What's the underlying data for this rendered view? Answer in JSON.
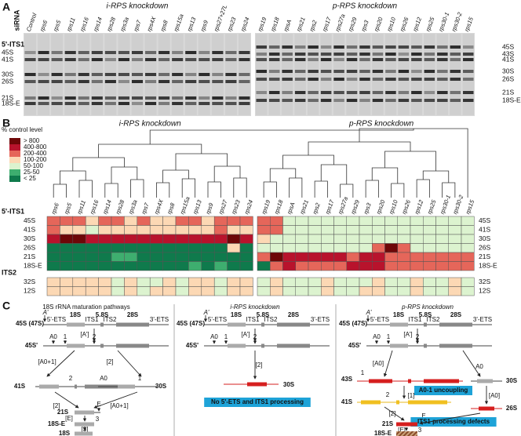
{
  "panel_a": {
    "label": "A",
    "row_header": "siRNA",
    "section": "5'-ITS1",
    "groups": [
      {
        "title": "i-RPS knockdown",
        "lanes": [
          "Control",
          "rps6",
          "rps5",
          "rps11",
          "rps16",
          "rps14",
          "rps28",
          "rps3a",
          "rps7",
          "rps4X",
          "rps8",
          "rps15a",
          "rps13",
          "rps9",
          "rps27+27L",
          "rps23",
          "rps24"
        ]
      },
      {
        "title": "p-RPS knockdown",
        "lanes": [
          "rps19",
          "rps18",
          "rpsA",
          "rps21",
          "rps2",
          "rps17",
          "rps27a",
          "rps29",
          "rps3",
          "rps20",
          "rps10",
          "rps26",
          "rps12",
          "rps25",
          "rps30-1",
          "rps30-2",
          "rps15"
        ]
      }
    ],
    "left_bands": [
      "45S",
      "41S",
      "30S",
      "26S",
      "21S",
      "18S-E"
    ],
    "right_bands": [
      "45S",
      "43S",
      "41S",
      "30S",
      "26S",
      "21S",
      "18S-E"
    ]
  },
  "panel_b": {
    "label": "B",
    "legend_title": "% control level",
    "legend": [
      {
        "label": "> 800",
        "color": "#6e0708"
      },
      {
        "label": "400-800",
        "color": "#b8132c"
      },
      {
        "label": "200-400",
        "color": "#e5665a"
      },
      {
        "label": "100-200",
        "color": "#fcd8b4"
      },
      {
        "label": "50-100",
        "color": "#dcf3cf"
      },
      {
        "label": "25-50",
        "color": "#3eae6f"
      },
      {
        "label": "< 25",
        "color": "#0f7a4c"
      }
    ],
    "groups": [
      {
        "title": "i-RPS knockdown",
        "lanes": [
          "rps6",
          "rps5",
          "rps11",
          "rps16",
          "rps14",
          "rps28",
          "rps3a",
          "rps7",
          "rps4X",
          "rps8",
          "rps15a",
          "rps13",
          "rps9",
          "rps27",
          "rps23",
          "rps24"
        ]
      },
      {
        "title": "p-RPS knockdown",
        "lanes": [
          "rps19",
          "rps18",
          "rpsA",
          "rps21",
          "rps2",
          "rps17",
          "rps27a",
          "rps29",
          "rps3",
          "rps20",
          "rps10",
          "rps26",
          "rps12",
          "rps25",
          "rps30-1",
          "rps30-2",
          "rps15"
        ]
      }
    ],
    "sections": [
      {
        "title": "5'-ITS1",
        "rows": [
          {
            "name": "45S",
            "levels": [
              [
                2,
                2,
                2,
                3,
                2,
                2,
                3,
                2,
                3,
                3,
                2,
                2,
                3,
                2,
                2,
                2
              ],
              [
                2,
                2,
                4,
                4,
                4,
                4,
                4,
                4,
                4,
                4,
                4,
                4,
                4,
                4,
                4,
                4,
                4
              ]
            ]
          },
          {
            "name": "41S",
            "levels": [
              [
                2,
                3,
                3,
                4,
                3,
                3,
                3,
                3,
                3,
                3,
                3,
                3,
                3,
                2,
                3,
                3
              ],
              [
                2,
                2,
                4,
                4,
                4,
                4,
                4,
                4,
                4,
                4,
                4,
                4,
                4,
                4,
                4,
                4,
                4
              ]
            ]
          },
          {
            "name": "30S",
            "levels": [
              [
                1,
                0,
                0,
                1,
                1,
                1,
                1,
                1,
                1,
                1,
                1,
                1,
                1,
                1,
                0,
                1
              ],
              [
                3,
                4,
                4,
                4,
                4,
                4,
                4,
                4,
                4,
                4,
                4,
                4,
                4,
                4,
                4,
                4,
                4
              ]
            ]
          },
          {
            "name": "26S",
            "levels": [
              [
                6,
                6,
                6,
                6,
                6,
                6,
                6,
                6,
                6,
                6,
                6,
                6,
                6,
                6,
                3,
                6
              ],
              [
                4,
                4,
                4,
                4,
                4,
                4,
                4,
                4,
                4,
                2,
                0,
                2,
                4,
                4,
                4,
                4,
                4
              ]
            ]
          },
          {
            "name": "21S",
            "levels": [
              [
                6,
                6,
                6,
                6,
                6,
                5,
                5,
                6,
                6,
                6,
                6,
                6,
                6,
                6,
                6,
                6
              ],
              [
                2,
                0,
                1,
                1,
                1,
                1,
                1,
                2,
                1,
                1,
                2,
                2,
                2,
                2,
                2,
                2,
                2
              ]
            ]
          },
          {
            "name": "18S-E",
            "levels": [
              [
                6,
                6,
                6,
                6,
                6,
                6,
                6,
                6,
                6,
                6,
                6,
                5,
                6,
                5,
                6,
                6
              ],
              [
                6,
                2,
                1,
                2,
                2,
                2,
                2,
                1,
                1,
                1,
                2,
                2,
                2,
                2,
                2,
                2,
                2
              ]
            ]
          }
        ]
      },
      {
        "title": "ITS2",
        "rows": [
          {
            "name": "32S",
            "levels": [
              [
                3,
                3,
                3,
                3,
                3,
                4,
                3,
                4,
                4,
                3,
                4,
                3,
                3,
                4,
                3,
                3
              ],
              [
                4,
                3,
                4,
                4,
                4,
                3,
                4,
                4,
                4,
                3,
                4,
                4,
                3,
                4,
                4,
                3,
                4
              ]
            ]
          },
          {
            "name": "12S",
            "levels": [
              [
                3,
                3,
                3,
                3,
                3,
                4,
                3,
                4,
                3,
                3,
                4,
                3,
                3,
                4,
                3,
                3
              ],
              [
                4,
                3,
                4,
                4,
                4,
                3,
                4,
                4,
                3,
                3,
                4,
                4,
                3,
                4,
                4,
                3,
                4
              ]
            ]
          }
        ]
      }
    ]
  },
  "panel_c": {
    "label": "C",
    "panels": [
      {
        "title": "18S rRNA maturation pathways",
        "labels": [
          "45S (47S)",
          "A'",
          "18S",
          "5.8S",
          "28S",
          "5'-ETS",
          "ITS1",
          "ITS2",
          "3'-ETS",
          "45S'",
          "A0",
          "1",
          "2",
          "[A']",
          "[A0+1]",
          "[2]",
          "41S",
          "2",
          "30S",
          "A0",
          "1",
          "[2]",
          "[A0+1]",
          "21S",
          "E",
          "[E]",
          "18S-E",
          "3",
          "[3]",
          "18S"
        ]
      },
      {
        "title": "i-RPS knockdown",
        "labels": [
          "45S (47S)",
          "A'",
          "18S",
          "5.8S",
          "28S",
          "5'-ETS",
          "ITS1",
          "ITS2",
          "3'-ETS",
          "45S'",
          "A0",
          "1",
          "2",
          "[A']",
          "[2]",
          "30S",
          "No 5'-ETS and ITS1 processing"
        ]
      },
      {
        "title": "p-RPS knockdown",
        "labels": [
          "45S (47S)",
          "A'",
          "18S",
          "5.8S",
          "28S",
          "5'-ETS",
          "ITS1",
          "ITS2",
          "3'-ETS",
          "45S'",
          "A0",
          "1",
          "2",
          "[A']",
          "[A0]",
          "A0",
          "43S",
          "30S",
          "A0-1 uncoupling",
          "[1]",
          "[A0]",
          "41S",
          "1",
          "2",
          "26S",
          "[2]",
          "[1]",
          "21S",
          "E",
          "ITS1 processing defects",
          "[E]",
          "18S-E",
          "3"
        ]
      }
    ]
  }
}
